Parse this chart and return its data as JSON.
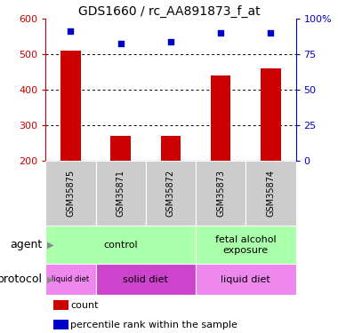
{
  "title": "GDS1660 / rc_AA891873_f_at",
  "samples": [
    "GSM35875",
    "GSM35871",
    "GSM35872",
    "GSM35873",
    "GSM35874"
  ],
  "bar_values": [
    510,
    270,
    270,
    440,
    460
  ],
  "bar_bottom": 200,
  "bar_color": "#cc0000",
  "dot_values": [
    565,
    530,
    535,
    558,
    558
  ],
  "dot_color": "#0000cc",
  "ylim_left": [
    200,
    600
  ],
  "ylim_right": [
    0,
    100
  ],
  "yticks_left": [
    200,
    300,
    400,
    500,
    600
  ],
  "yticks_right": [
    0,
    25,
    50,
    75,
    100
  ],
  "ytick_labels_right": [
    "0",
    "25",
    "50",
    "75",
    "100%"
  ],
  "grid_values": [
    300,
    400,
    500
  ],
  "agent_spans": [
    [
      0,
      3,
      "control",
      "#aaffaa"
    ],
    [
      3,
      5,
      "fetal alcohol\nexposure",
      "#aaffaa"
    ]
  ],
  "protocol_spans": [
    [
      0,
      1,
      "liquid diet",
      "#ee88ee",
      6
    ],
    [
      1,
      3,
      "solid diet",
      "#cc44cc",
      8
    ],
    [
      3,
      5,
      "liquid diet",
      "#ee88ee",
      8
    ]
  ],
  "legend_items": [
    {
      "color": "#cc0000",
      "label": "count"
    },
    {
      "color": "#0000cc",
      "label": "percentile rank within the sample"
    }
  ],
  "left_axis_color": "#cc0000",
  "right_axis_color": "#0000cc",
  "sample_bg": "#cccccc",
  "bar_width": 0.4
}
